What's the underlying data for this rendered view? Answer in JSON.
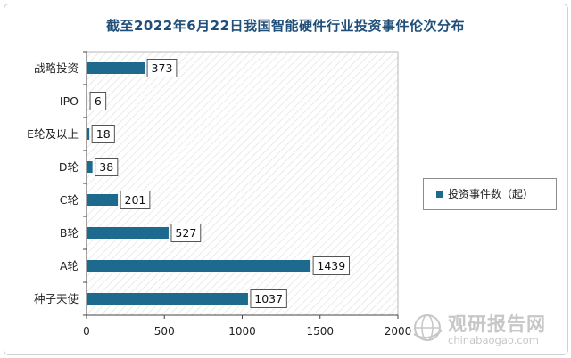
{
  "chart_data": {
    "type": "bar",
    "orientation": "horizontal",
    "title": "截至2022年6月22日我国智能硬件行业投资事件伦次分布",
    "categories": [
      "战略投资",
      "IPO",
      "E轮及以上",
      "D轮",
      "C轮",
      "B轮",
      "A轮",
      "种子天使"
    ],
    "series": [
      {
        "name": "投资事件数（起）",
        "values": [
          373,
          6,
          18,
          38,
          201,
          527,
          1439,
          1037
        ]
      }
    ],
    "xlim": [
      0,
      2000
    ],
    "xticks": [
      0,
      500,
      1000,
      1500,
      2000
    ],
    "xlabel": "",
    "ylabel": "",
    "grid": false,
    "legend": "right",
    "data_labels": true
  },
  "colors": {
    "bar": "#1e6a8f",
    "title": "#1f4e79",
    "hatch": "#d8d8d8"
  },
  "watermark": {
    "name": "观研报告网",
    "url": "chinabaogao.com"
  }
}
